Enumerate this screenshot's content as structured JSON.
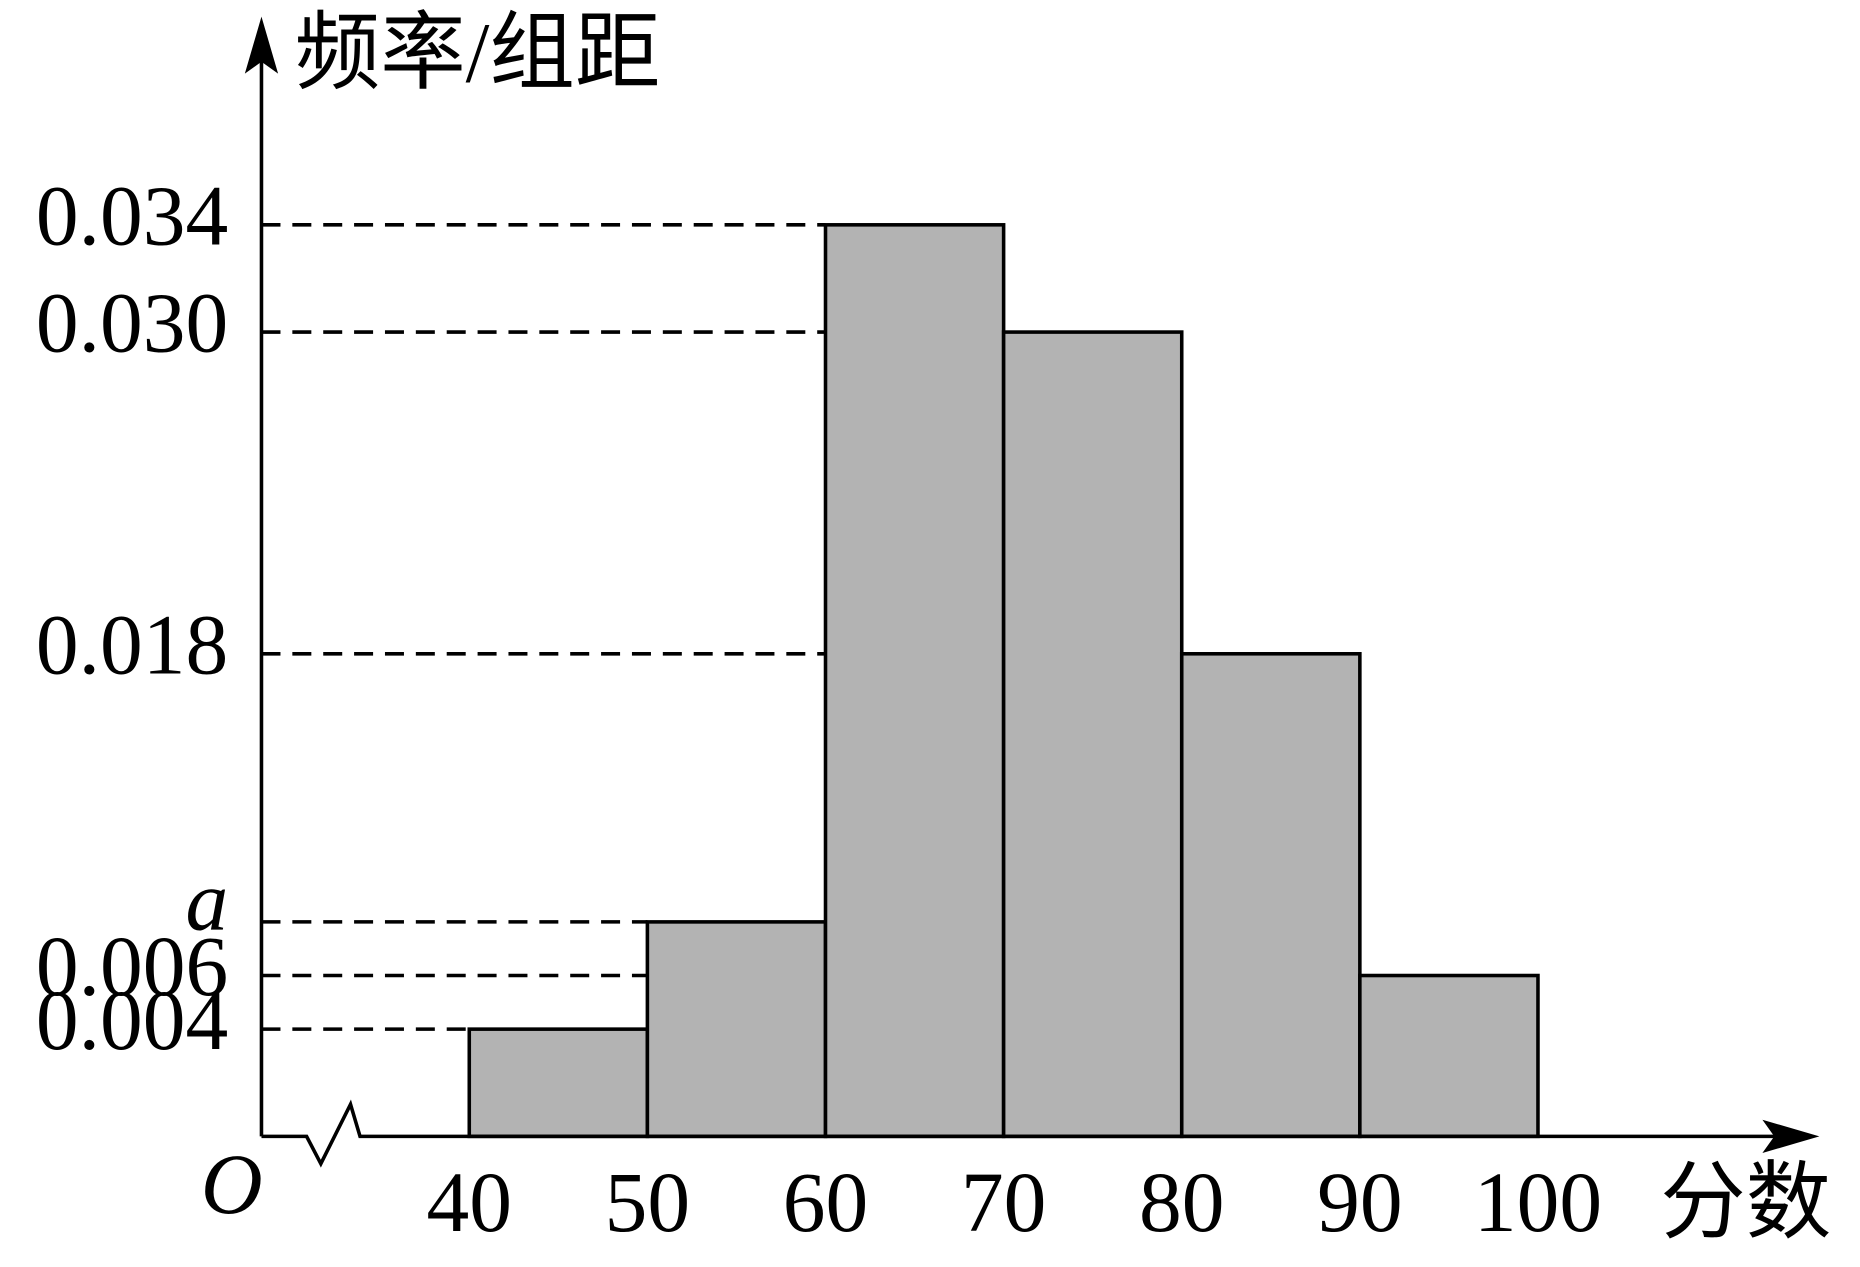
{
  "chart_data": {
    "type": "histogram",
    "y_label": "频率/组距",
    "x_label": "分数",
    "origin_label": "O",
    "bins": [
      40,
      50,
      60,
      70,
      80,
      90,
      100
    ],
    "values": [
      0.004,
      0.008,
      0.034,
      0.03,
      0.018,
      0.006
    ],
    "color": "#b3b3b3",
    "xlim": [
      28.3,
      115.3
    ],
    "xticks": [
      40,
      50,
      60,
      70,
      80,
      90,
      100
    ],
    "ylim": [
      0,
      0.0415
    ],
    "yticks": [
      0.004,
      0.006,
      {
        "value": 0.008,
        "label": "a"
      },
      0.018,
      {
        "value": 0.03,
        "label": "0.030"
      },
      0.034
    ],
    "grid": true
  }
}
